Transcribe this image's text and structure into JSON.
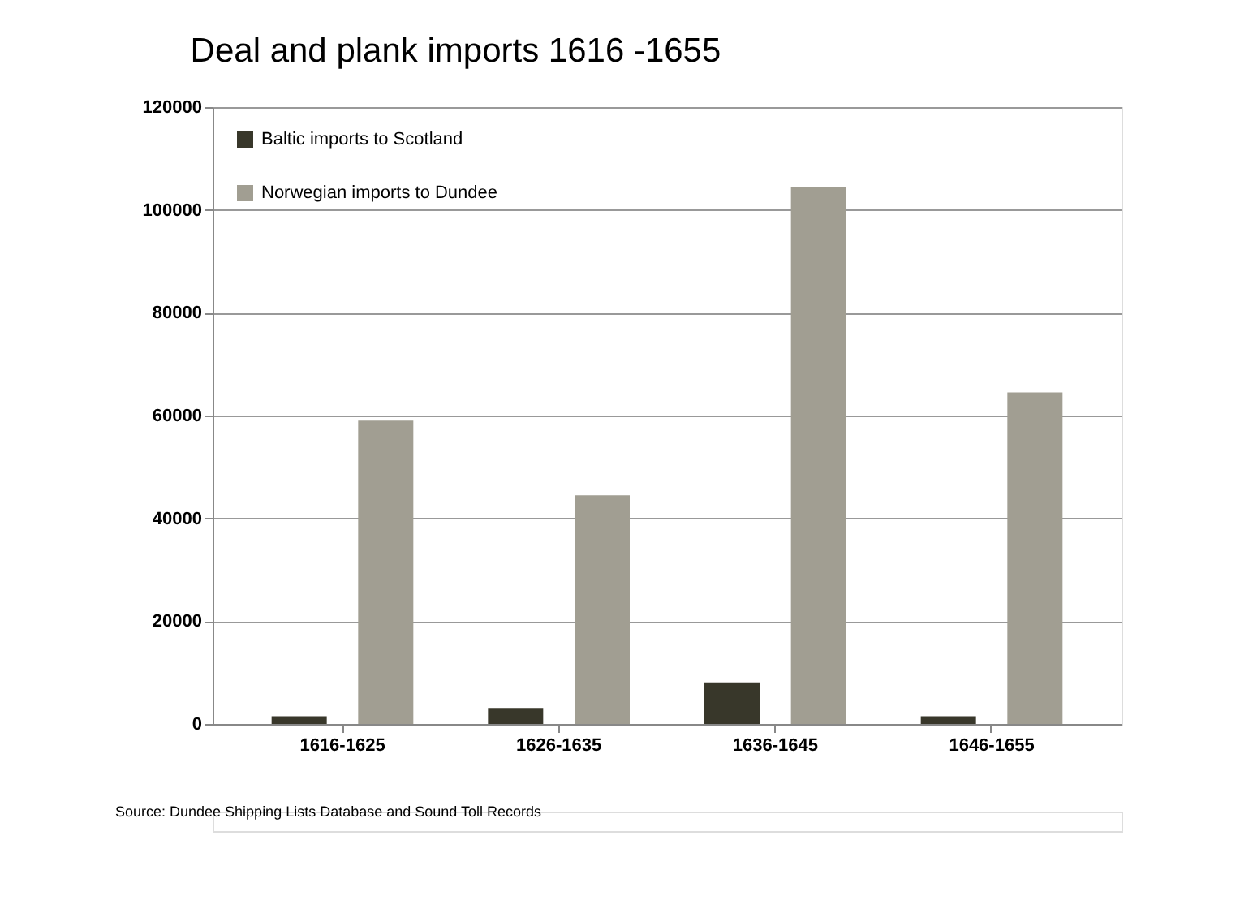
{
  "chart_data": {
    "type": "bar",
    "title": "Deal and plank imports 1616 -1655",
    "categories": [
      "1616-1625",
      "1626-1635",
      "1636-1645",
      "1646-1655"
    ],
    "series": [
      {
        "name": "Baltic imports to Scotland",
        "color": "#38372a",
        "values": [
          1500,
          3100,
          8100,
          1500
        ]
      },
      {
        "name": "Norwegian imports to Dundee",
        "color": "#a19e92",
        "values": [
          59000,
          44500,
          104500,
          64500
        ]
      }
    ],
    "ylim": [
      0,
      120000
    ],
    "yticks": [
      0,
      20000,
      40000,
      60000,
      80000,
      100000,
      120000
    ],
    "grid": "y",
    "legend": "top left",
    "annotations": [
      "Source:  Dundee Shipping Lists Database and Sound Toll Records"
    ]
  }
}
